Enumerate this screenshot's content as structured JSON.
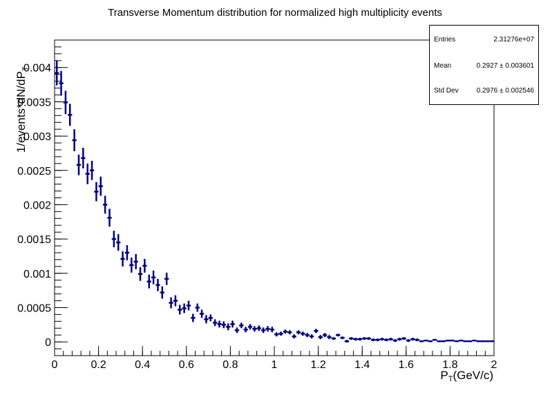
{
  "chart_data": {
    "type": "scatter",
    "title": "Transverse Momentum distribution for normalized high multiplicity events",
    "xlabel": "P_T(GeV/c)",
    "ylabel": "1/events*dN/dP_T",
    "xlim": [
      0,
      2
    ],
    "ylim": [
      -0.0002,
      0.0044
    ],
    "x_ticks": [
      0,
      0.2,
      0.4,
      0.6,
      0.8,
      1,
      1.2,
      1.4,
      1.6,
      1.8,
      2
    ],
    "x_tick_labels": [
      "0",
      "0.2",
      "0.4",
      "0.6",
      "0.8",
      "1",
      "1.2",
      "1.4",
      "1.6",
      "1.8",
      "2"
    ],
    "y_ticks": [
      0,
      0.0005,
      0.001,
      0.0015,
      0.002,
      0.0025,
      0.003,
      0.0035,
      0.004
    ],
    "y_tick_labels": [
      "0",
      "0.0005",
      "0.001",
      "0.0015",
      "0.002",
      "0.0025",
      "0.003",
      "0.0035",
      "0.004"
    ],
    "bin_width": 0.02,
    "x": [
      0.01,
      0.03,
      0.05,
      0.07,
      0.09,
      0.11,
      0.13,
      0.15,
      0.17,
      0.19,
      0.21,
      0.23,
      0.25,
      0.27,
      0.29,
      0.31,
      0.33,
      0.35,
      0.37,
      0.39,
      0.41,
      0.43,
      0.45,
      0.47,
      0.49,
      0.51,
      0.53,
      0.55,
      0.57,
      0.59,
      0.61,
      0.63,
      0.65,
      0.67,
      0.69,
      0.71,
      0.73,
      0.75,
      0.77,
      0.79,
      0.81,
      0.83,
      0.85,
      0.87,
      0.89,
      0.91,
      0.93,
      0.95,
      0.97,
      0.99,
      1.01,
      1.03,
      1.05,
      1.07,
      1.09,
      1.11,
      1.13,
      1.15,
      1.17,
      1.19,
      1.21,
      1.23,
      1.25,
      1.27,
      1.29,
      1.31,
      1.33,
      1.35,
      1.37,
      1.39,
      1.41,
      1.43,
      1.45,
      1.47,
      1.49,
      1.51,
      1.53,
      1.55,
      1.57,
      1.59,
      1.61,
      1.63,
      1.65,
      1.67,
      1.69,
      1.71,
      1.73,
      1.75,
      1.77,
      1.79,
      1.81,
      1.83,
      1.85,
      1.87,
      1.89,
      1.91,
      1.93,
      1.95,
      1.97,
      1.99
    ],
    "values": [
      0.00392,
      0.00377,
      0.00349,
      0.00331,
      0.00294,
      0.00258,
      0.00268,
      0.00245,
      0.0025,
      0.00219,
      0.00227,
      0.002,
      0.00181,
      0.0015,
      0.00145,
      0.00121,
      0.0013,
      0.00112,
      0.00117,
      0.00099,
      0.00111,
      0.00088,
      0.00094,
      0.00083,
      0.00072,
      0.00092,
      0.00057,
      0.0006,
      0.00047,
      0.00049,
      0.00053,
      0.00035,
      0.0005,
      0.00041,
      0.00033,
      0.00035,
      0.00028,
      0.00026,
      0.00025,
      0.00022,
      0.00026,
      0.00017,
      0.00024,
      0.00018,
      0.00022,
      0.00019,
      0.0002,
      0.00017,
      0.00019,
      0.00018,
      0.00011,
      0.00012,
      0.00015,
      0.00014,
      8e-05,
      0.00014,
      0.00012,
      0.0001,
      8e-05,
      0.00016,
      7e-05,
      0.0001,
      7e-05,
      5e-05,
      0.0001,
      6e-05,
      1e-05,
      5e-05,
      4e-05,
      4e-05,
      5e-05,
      5e-05,
      3e-05,
      3e-05,
      4e-05,
      3e-05,
      4e-05,
      2e-05,
      4e-05,
      5e-05,
      2e-05,
      4e-05,
      3e-05,
      1e-05,
      2e-05,
      1e-05,
      3e-05,
      1e-05,
      1e-05,
      2e-05,
      2e-05,
      1e-05,
      2e-05,
      1e-05,
      1e-05,
      2e-05,
      1e-05,
      1e-05,
      1e-05,
      1e-05
    ],
    "errors": [
      0.00018,
      0.00018,
      0.00017,
      0.00016,
      0.00016,
      0.00015,
      0.00015,
      0.00015,
      0.00014,
      0.00014,
      0.00014,
      0.00013,
      0.00013,
      0.00012,
      0.00012,
      0.00011,
      0.00011,
      0.00011,
      0.00011,
      0.0001,
      0.0001,
      0.0001,
      0.0001,
      9e-05,
      9e-05,
      9e-05,
      8e-05,
      8e-05,
      7e-05,
      7e-05,
      7e-05,
      6e-05,
      6e-05,
      6e-05,
      6e-05,
      5e-05,
      5e-05,
      5e-05,
      5e-05,
      5e-05,
      5e-05,
      4e-05,
      4e-05,
      4e-05,
      4e-05,
      4e-05,
      4e-05,
      4e-05,
      4e-05,
      4e-05,
      3e-05,
      3e-05,
      3e-05,
      3e-05,
      3e-05,
      3e-05,
      3e-05,
      3e-05,
      3e-05,
      3e-05,
      3e-05,
      3e-05,
      3e-05,
      2e-05,
      2e-05,
      2e-05,
      2e-05,
      2e-05,
      2e-05,
      2e-05,
      2e-05,
      2e-05,
      2e-05,
      2e-05,
      2e-05,
      2e-05,
      2e-05,
      2e-05,
      2e-05,
      2e-05,
      2e-05,
      2e-05,
      2e-05,
      1e-05,
      1e-05,
      1e-05,
      1e-05,
      1e-05,
      1e-05,
      1e-05,
      1e-05,
      1e-05,
      1e-05,
      1e-05,
      1e-05,
      1e-05,
      1e-05,
      1e-05,
      1e-05,
      1e-05
    ],
    "marker_color": "#000080"
  },
  "stats_box": {
    "entries_label": "Entries",
    "entries_value": "2.31276e+07",
    "mean_label": "Mean",
    "mean_value": "0.2927 ± 0.003601",
    "stddev_label": "Std Dev",
    "stddev_value": "0.2976 ± 0.002546"
  }
}
